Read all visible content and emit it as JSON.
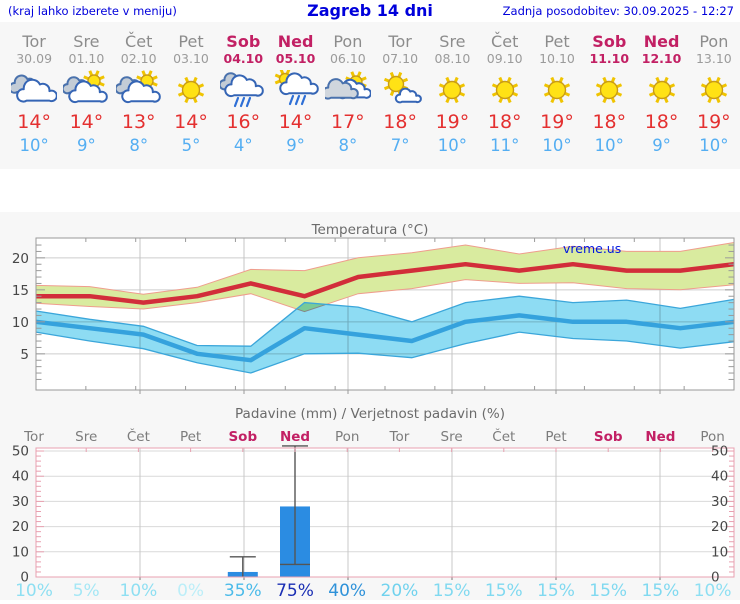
{
  "header": {
    "left_note": "(kraj lahko izberete v meniju)",
    "title": "Zagreb 14 dni",
    "updated": "Zadnja posodobitev: 30.09.2025 - 12:27"
  },
  "colors": {
    "header_blue": "#0000db",
    "weekend": "#c22064",
    "day_gray": "#8c8c8c",
    "date_gray": "#9b9b9b",
    "tmax_red": "#e43030",
    "tmin_blue": "#54aef2",
    "band_green": "#d9eb9f",
    "band_green_edge": "#ef9d8d",
    "band_cyan": "#8edcf3",
    "band_cyan_edge": "#3ba6da",
    "line_red": "#d22d3a",
    "line_blue": "#35a2dd",
    "bar_blue": "#2b8ce2",
    "axis_gray": "#9a9a9a",
    "axis_pink": "#e8a0b0",
    "grid_gray": "#cdcdcd",
    "label_gray": "#474747",
    "title_gray": "#6b6b6b",
    "watermark_blue": "#0016e0",
    "prob_colors": {
      "0": "#bceef8",
      "5": "#a5e7f5",
      "10": "#8edff2",
      "15": "#80d9f0",
      "20": "#70d2ee",
      "35": "#4cbbe9",
      "40": "#2f92d9",
      "75": "#1b2fb4"
    }
  },
  "days": [
    {
      "name": "Tor",
      "date": "30.09",
      "weekend": false,
      "icon": "cloudy",
      "tmax": "14°",
      "tmin": "10°",
      "precip_prob": "10%"
    },
    {
      "name": "Sre",
      "date": "01.10",
      "weekend": false,
      "icon": "sun-cloud",
      "tmax": "14°",
      "tmin": "9°",
      "precip_prob": "5%"
    },
    {
      "name": "Čet",
      "date": "02.10",
      "weekend": false,
      "icon": "sun-cloud",
      "tmax": "13°",
      "tmin": "8°",
      "precip_prob": "10%"
    },
    {
      "name": "Pet",
      "date": "03.10",
      "weekend": false,
      "icon": "sunny",
      "tmax": "14°",
      "tmin": "5°",
      "precip_prob": "0%"
    },
    {
      "name": "Sob",
      "date": "04.10",
      "weekend": true,
      "icon": "rain",
      "tmax": "16°",
      "tmin": "4°",
      "precip_prob": "35%"
    },
    {
      "name": "Ned",
      "date": "05.10",
      "weekend": true,
      "icon": "sun-rain",
      "tmax": "14°",
      "tmin": "9°",
      "precip_prob": "75%"
    },
    {
      "name": "Pon",
      "date": "06.10",
      "weekend": false,
      "icon": "cloud-sun",
      "tmax": "17°",
      "tmin": "8°",
      "precip_prob": "40%"
    },
    {
      "name": "Tor",
      "date": "07.10",
      "weekend": false,
      "icon": "sun-small-cloud",
      "tmax": "18°",
      "tmin": "7°",
      "precip_prob": "20%"
    },
    {
      "name": "Sre",
      "date": "08.10",
      "weekend": false,
      "icon": "sunny",
      "tmax": "19°",
      "tmin": "10°",
      "precip_prob": "15%"
    },
    {
      "name": "Čet",
      "date": "09.10",
      "weekend": false,
      "icon": "sunny",
      "tmax": "18°",
      "tmin": "11°",
      "precip_prob": "15%"
    },
    {
      "name": "Pet",
      "date": "10.10",
      "weekend": false,
      "icon": "sunny",
      "tmax": "19°",
      "tmin": "10°",
      "precip_prob": "15%"
    },
    {
      "name": "Sob",
      "date": "11.10",
      "weekend": true,
      "icon": "sunny",
      "tmax": "18°",
      "tmin": "10°",
      "precip_prob": "15%"
    },
    {
      "name": "Ned",
      "date": "12.10",
      "weekend": true,
      "icon": "sunny",
      "tmax": "18°",
      "tmin": "9°",
      "precip_prob": "15%"
    },
    {
      "name": "Pon",
      "date": "13.10",
      "weekend": false,
      "icon": "sunny",
      "tmax": "19°",
      "tmin": "10°",
      "precip_prob": "10%"
    }
  ],
  "chart_data": [
    {
      "type": "line",
      "title": "Temperatura (°C)",
      "watermark": "vreme.us",
      "x_labels": [
        "Tor 30.09",
        "Sre 01.10",
        "Čet 02.10",
        "Pet 03.10",
        "Sob 04.10",
        "Ned 05.10",
        "Pon 06.10",
        "Tor 07.10",
        "Sre 08.10",
        "Čet 09.10",
        "Pet 10.10",
        "Sob 11.10",
        "Ned 12.10",
        "Pon 13.10"
      ],
      "yticks": [
        5,
        10,
        15,
        20
      ],
      "ylim": [
        -0.65,
        23.1
      ],
      "grid": true,
      "series": [
        {
          "name": "t_max",
          "values": [
            14,
            14,
            13,
            14,
            16,
            14,
            17,
            18,
            19,
            18,
            19,
            18,
            18,
            19
          ]
        },
        {
          "name": "t_max_band_upper",
          "values": [
            15.7,
            15.5,
            14.3,
            15.4,
            18.2,
            18,
            20,
            20.8,
            22,
            20.6,
            21.8,
            21,
            21,
            22.4
          ]
        },
        {
          "name": "t_max_band_lower",
          "values": [
            12.9,
            12.4,
            12,
            13,
            14.4,
            11.6,
            14.4,
            15.2,
            16.6,
            16,
            16.1,
            15.2,
            15,
            15.8
          ]
        },
        {
          "name": "t_min",
          "values": [
            10,
            9,
            8,
            5,
            4,
            9,
            8,
            7,
            10,
            11,
            10,
            10,
            9,
            10
          ]
        },
        {
          "name": "t_min_band_upper",
          "values": [
            11.7,
            10.4,
            9.3,
            6.3,
            6.2,
            13,
            12.3,
            10,
            13,
            14,
            13,
            13.4,
            12.1,
            13.5
          ]
        },
        {
          "name": "t_min_band_lower",
          "values": [
            8.4,
            7,
            5.8,
            3.6,
            2,
            5,
            5.1,
            4.4,
            6.6,
            8.4,
            7.4,
            7,
            5.9,
            6.9
          ]
        }
      ]
    },
    {
      "type": "bar",
      "title": "Padavine (mm) / Verjetnost padavin (%)",
      "categories": [
        "Tor",
        "Sre",
        "Čet",
        "Pet",
        "Sob",
        "Ned",
        "Pon",
        "Tor",
        "Sre",
        "Čet",
        "Pet",
        "Sob",
        "Ned",
        "Pon"
      ],
      "values": [
        0,
        0,
        0,
        0,
        2,
        28,
        0,
        0,
        0,
        0,
        0,
        0,
        0,
        0
      ],
      "whiskers": [
        null,
        null,
        null,
        null,
        [
          0,
          8
        ],
        [
          5,
          52
        ],
        null,
        null,
        null,
        null,
        null,
        null,
        null,
        null
      ],
      "probabilities": [
        "10%",
        "5%",
        "10%",
        "0%",
        "35%",
        "75%",
        "40%",
        "20%",
        "15%",
        "15%",
        "15%",
        "15%",
        "15%",
        "10%"
      ],
      "yticks": [
        0,
        10,
        20,
        30,
        40,
        50
      ],
      "ylim": [
        0,
        51.2
      ],
      "grid": true
    }
  ]
}
